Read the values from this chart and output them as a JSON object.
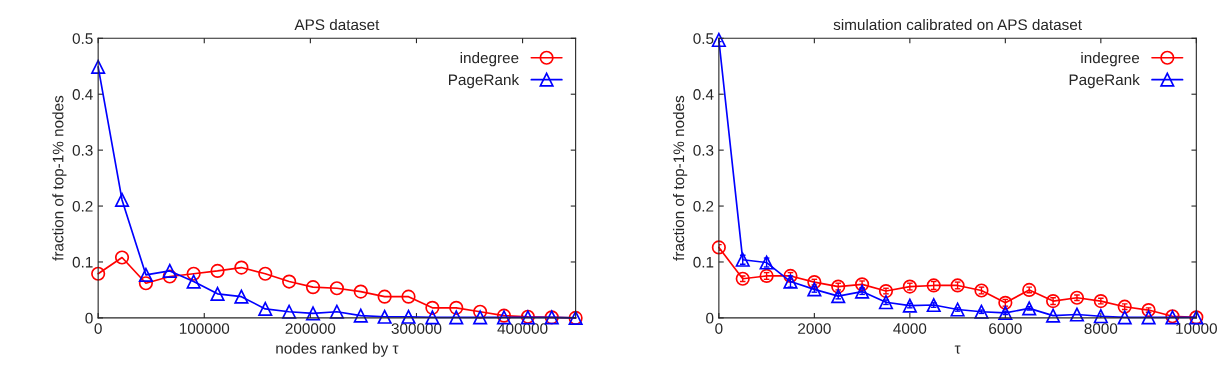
{
  "chart_data": [
    {
      "type": "line",
      "title": "APS dataset",
      "xlabel": "nodes ranked by τ",
      "ylabel": "fraction of top-1% nodes",
      "x": [
        0,
        22500,
        45000,
        67500,
        90000,
        112500,
        135000,
        157500,
        180000,
        202500,
        225000,
        247500,
        270000,
        292500,
        315000,
        337500,
        360000,
        382500,
        405000,
        427500,
        450000
      ],
      "series": [
        {
          "name": "indegree",
          "color": "#ff0000",
          "marker": "circle",
          "values": [
            0.079,
            0.108,
            0.062,
            0.074,
            0.079,
            0.084,
            0.09,
            0.079,
            0.065,
            0.055,
            0.053,
            0.047,
            0.038,
            0.038,
            0.018,
            0.018,
            0.011,
            0.004,
            0.002,
            0.001,
            0.0
          ]
        },
        {
          "name": "PageRank",
          "color": "#0000ff",
          "marker": "triangle",
          "values": [
            0.449,
            0.211,
            0.077,
            0.084,
            0.065,
            0.043,
            0.038,
            0.016,
            0.011,
            0.008,
            0.011,
            0.004,
            0.002,
            0.002,
            0.001,
            0.001,
            0.001,
            0.001,
            0.001,
            0.001,
            0.0
          ]
        }
      ],
      "xlim": [
        0,
        450000
      ],
      "xticks": [
        0,
        100000,
        200000,
        300000,
        400000
      ],
      "ylim": [
        0,
        0.5
      ],
      "yticks": [
        0,
        0.1,
        0.2,
        0.3,
        0.4,
        0.5
      ],
      "grid": false,
      "legend": "top right"
    },
    {
      "type": "line",
      "title": "simulation calibrated on APS dataset",
      "xlabel": "τ",
      "ylabel": "fraction of top-1% nodes",
      "x": [
        0,
        500,
        1000,
        1500,
        2000,
        2500,
        3000,
        3500,
        4000,
        4500,
        5000,
        5500,
        6000,
        6500,
        7000,
        7500,
        8000,
        8500,
        9000,
        9500,
        10000
      ],
      "series": [
        {
          "name": "indegree",
          "color": "#ff0000",
          "marker": "circle",
          "values": [
            0.126,
            0.07,
            0.075,
            0.075,
            0.064,
            0.056,
            0.06,
            0.048,
            0.056,
            0.058,
            0.058,
            0.049,
            0.027,
            0.05,
            0.03,
            0.036,
            0.03,
            0.02,
            0.014,
            0.003,
            0.001
          ],
          "errors": [
            0.005,
            0.005,
            0.006,
            0.006,
            0.005,
            0.006,
            0.006,
            0.005,
            0.006,
            0.007,
            0.006,
            0.006,
            0.006,
            0.005,
            0.006,
            0.005,
            0.005,
            0.005,
            0.004,
            null,
            null
          ]
        },
        {
          "name": "PageRank",
          "color": "#0000ff",
          "marker": "triangle",
          "values": [
            0.497,
            0.104,
            0.099,
            0.065,
            0.051,
            0.039,
            0.047,
            0.028,
            0.022,
            0.023,
            0.015,
            0.011,
            0.009,
            0.017,
            0.004,
            0.006,
            0.003,
            0.001,
            0.001,
            0.001,
            0.001
          ],
          "errors": [
            0.003,
            0.008,
            0.008,
            0.01,
            0.005,
            0.005,
            0.005,
            0.004,
            0.004,
            0.004,
            0.003,
            0.003,
            0.003,
            0.003,
            null,
            null,
            null,
            null,
            null,
            null,
            null
          ]
        }
      ],
      "xlim": [
        0,
        10000
      ],
      "xticks": [
        0,
        2000,
        4000,
        6000,
        8000,
        10000
      ],
      "ylim": [
        0,
        0.5
      ],
      "yticks": [
        0,
        0.1,
        0.2,
        0.3,
        0.4,
        0.5
      ],
      "grid": false,
      "legend": "top right"
    }
  ]
}
